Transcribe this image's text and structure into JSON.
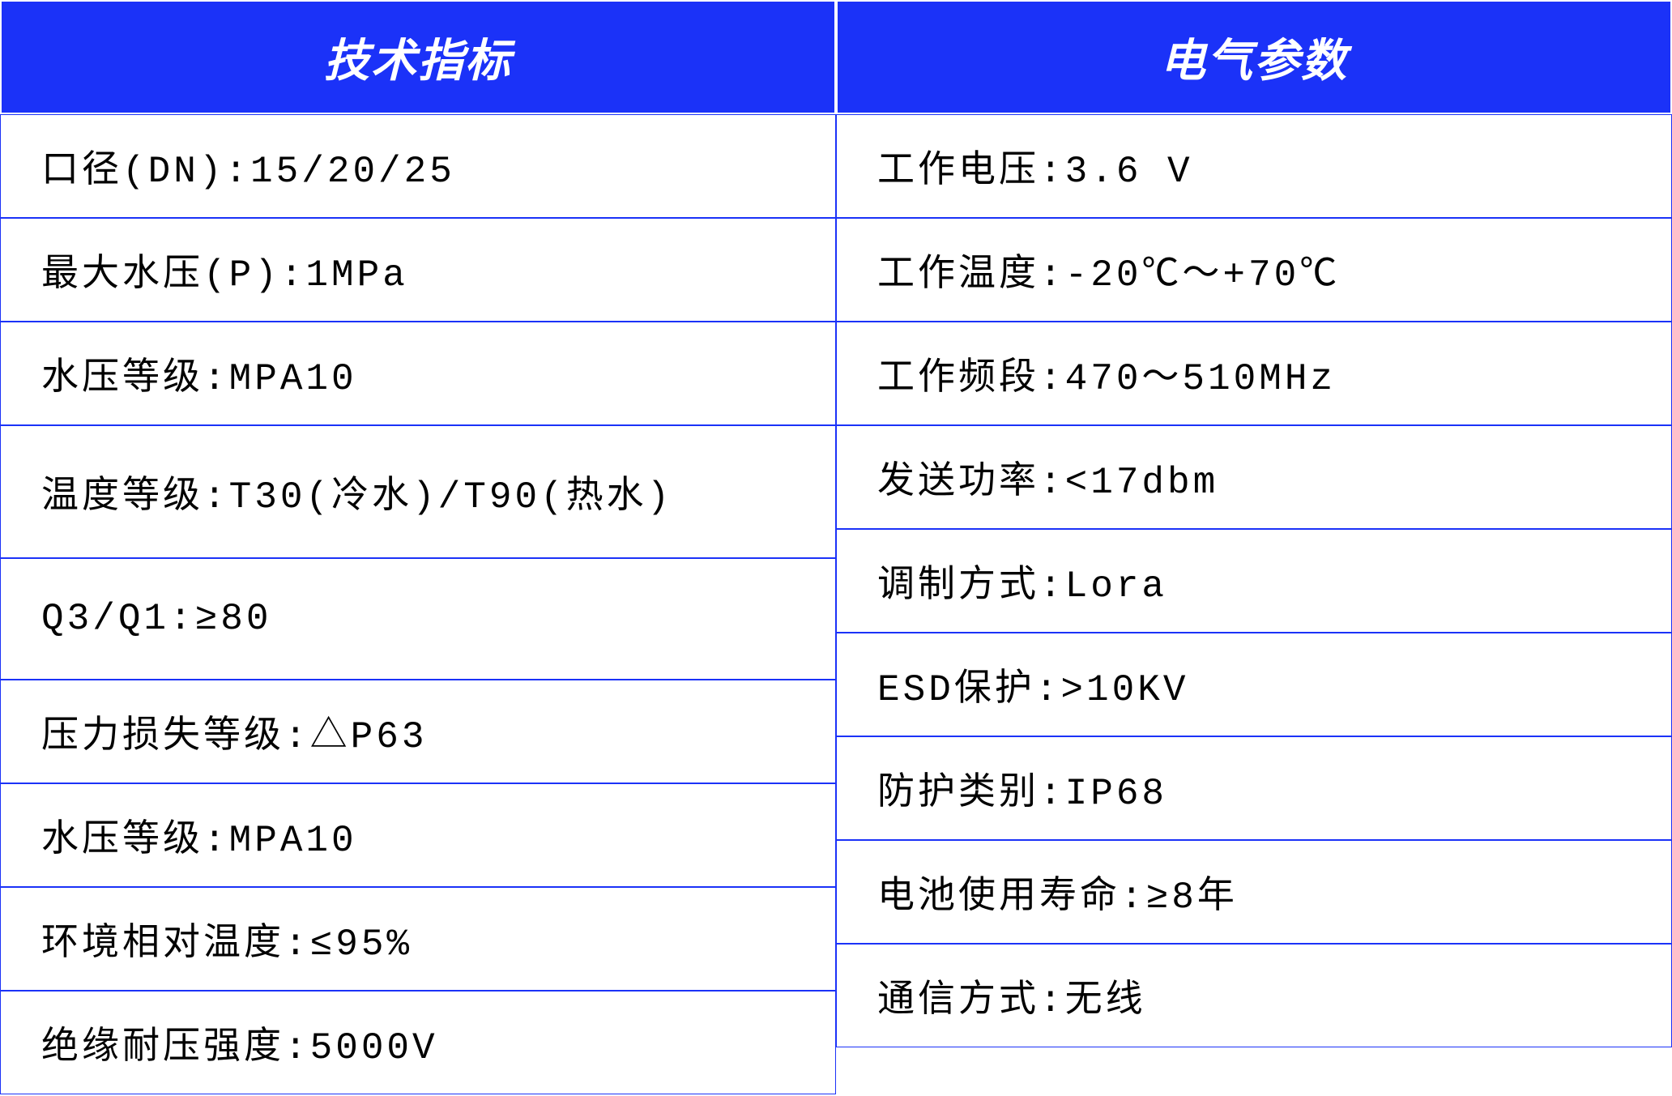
{
  "table": {
    "type": "table",
    "columns": [
      {
        "header": "技术指标",
        "width": "50%"
      },
      {
        "header": "电气参数",
        "width": "50%"
      }
    ],
    "rows": {
      "left": [
        "口径(DN):15/20/25",
        "最大水压(P):1MPa",
        "水压等级:MPA10",
        "温度等级:T30(冷水)/T90(热水)",
        "Q3/Q1:≥80",
        "压力损失等级:△P63",
        "水压等级:MPA10",
        "环境相对温度:≤95%",
        "绝缘耐压强度:5000V"
      ],
      "right": [
        "工作电压:3.6 V",
        "工作温度:-20℃～+70℃",
        "工作频段:470～510MHz",
        "发送功率:<17dbm",
        "调制方式:Lora",
        "ESD保护:>10KV",
        "防护类别:IP68",
        "电池使用寿命:≥8年",
        "通信方式:无线"
      ]
    },
    "styling": {
      "header_bg_color": "#1b32f8",
      "header_text_color": "#ffffff",
      "header_font_size": 56,
      "header_font_weight": "bold",
      "header_font_style": "italic",
      "cell_bg_color": "#ffffff",
      "cell_text_color": "#000000",
      "cell_font_size": 46,
      "border_color": "#1b32f8",
      "border_width": 1,
      "header_border_color": "#ffffff",
      "left_column_tall_rows": [
        3,
        4
      ],
      "font_family": "SimSun"
    }
  }
}
